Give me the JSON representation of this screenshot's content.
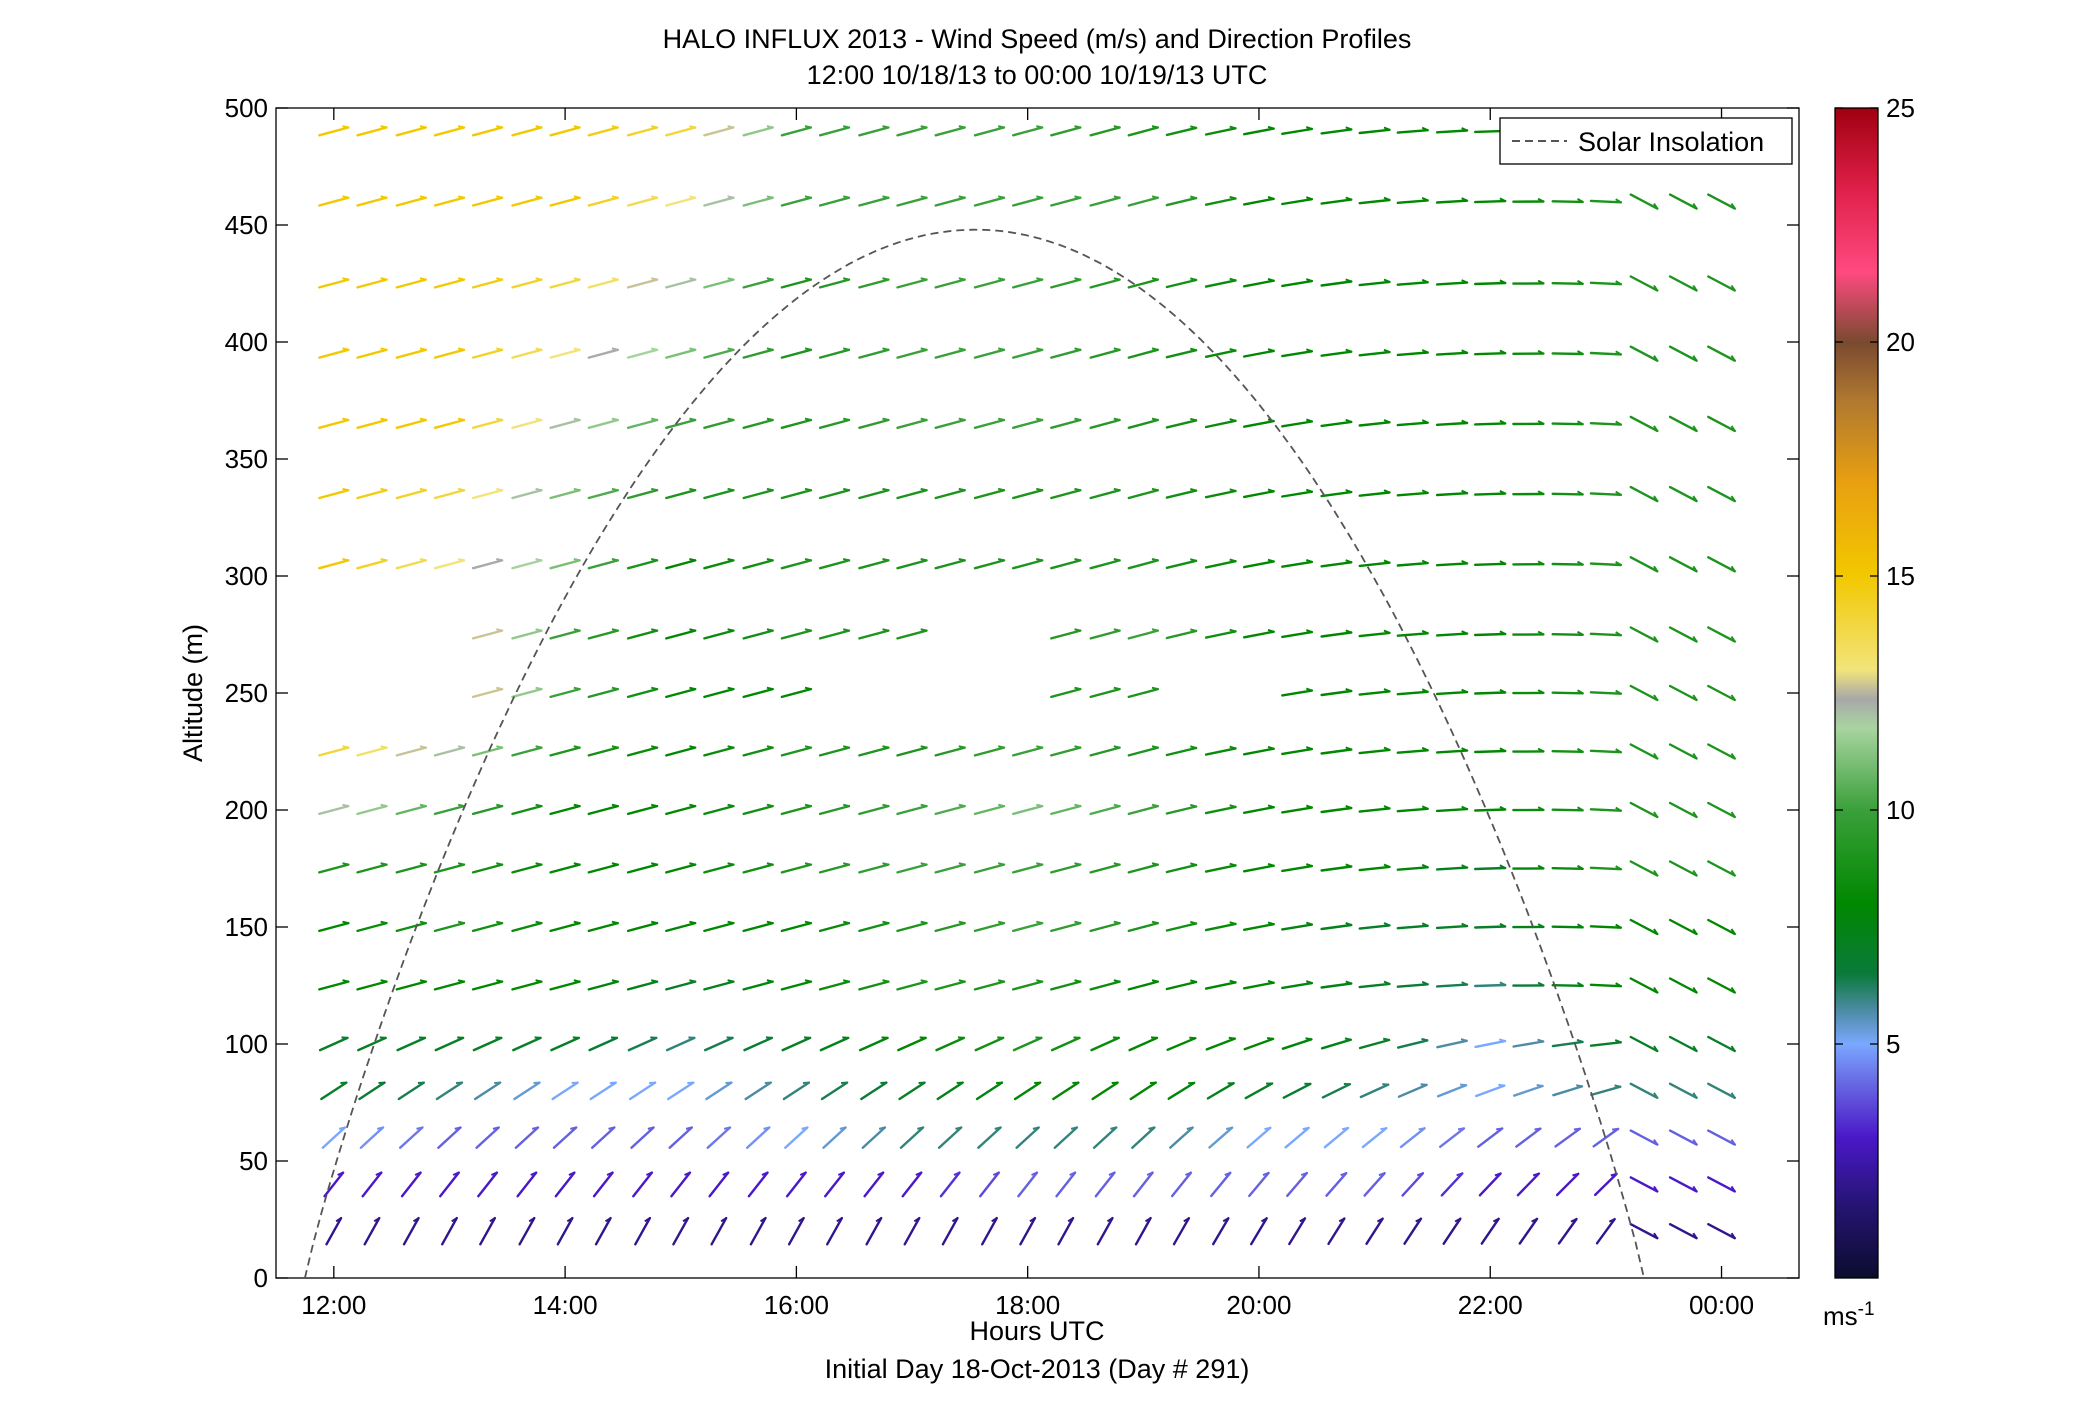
{
  "chart_data": {
    "type": "wind barb profile",
    "title": "HALO INFLUX 2013 - Wind Speed (m/s) and Direction Profiles",
    "subtitle": "12:00 10/18/13 to 00:00 10/19/13  UTC",
    "xlabel": "Hours UTC",
    "ylabel": "Altitude (m)",
    "footnote": "Initial Day 18-Oct-2013 (Day # 291)",
    "xlim_hours": [
      11.5,
      24.67
    ],
    "ylim": [
      0,
      500
    ],
    "x_ticks": [
      {
        "value": 12,
        "label": "12:00"
      },
      {
        "value": 14,
        "label": "14:00"
      },
      {
        "value": 16,
        "label": "16:00"
      },
      {
        "value": 18,
        "label": "18:00"
      },
      {
        "value": 20,
        "label": "20:00"
      },
      {
        "value": 22,
        "label": "22:00"
      },
      {
        "value": 24,
        "label": "00:00"
      }
    ],
    "y_ticks": [
      0,
      50,
      100,
      150,
      200,
      250,
      300,
      350,
      400,
      450,
      500
    ],
    "legend": {
      "label": "Solar Insolation",
      "placement": "top-right"
    },
    "colorbar": {
      "range": [
        0,
        25
      ],
      "ticks": [
        5,
        10,
        15,
        20,
        25
      ],
      "unit_label": "ms",
      "unit_exponent": "-1"
    },
    "solar_insolation_curve": {
      "style": "dashed",
      "color": "#555555",
      "start_hour": 11.75,
      "peak_hour": 17.55,
      "peak_altitude": 448,
      "end_hour": 23.33
    },
    "time_hours": [
      12.0,
      12.33,
      12.67,
      13.0,
      13.33,
      13.67,
      14.0,
      14.33,
      14.67,
      15.0,
      15.33,
      15.67,
      16.0,
      16.33,
      16.67,
      17.0,
      17.33,
      17.67,
      18.0,
      18.33,
      18.67,
      19.0,
      19.33,
      19.67,
      20.0,
      20.33,
      20.67,
      21.0,
      21.33,
      21.67,
      22.0,
      22.33,
      22.67,
      23.0,
      23.33,
      23.67,
      24.0
    ],
    "heights_m": [
      20,
      40,
      60,
      80,
      100,
      125,
      150,
      175,
      200,
      225,
      250,
      275,
      305,
      335,
      365,
      395,
      425,
      460,
      490
    ],
    "speed_profiles": [
      {
        "start_hour": 12.0,
        "speeds": [
          2,
          3,
          5,
          7,
          7,
          8,
          8,
          9,
          12,
          14,
          null,
          null,
          15,
          15,
          15,
          15,
          15,
          15,
          15
        ]
      },
      {
        "start_hour": 13.0,
        "speeds": [
          2,
          3,
          4,
          6,
          7,
          8,
          9,
          9,
          10,
          12,
          14,
          14,
          13,
          14,
          15,
          15,
          15,
          15,
          15
        ]
      },
      {
        "start_hour": 14.0,
        "speeds": [
          2,
          3,
          4,
          5,
          7,
          8,
          8,
          8,
          8,
          9,
          10,
          10,
          11,
          11,
          12,
          13,
          14,
          15,
          15
        ]
      },
      {
        "start_hour": 15.0,
        "speeds": [
          2,
          3,
          4,
          5,
          6,
          7,
          8,
          8,
          8,
          8,
          8,
          8,
          8,
          9,
          10,
          11,
          12,
          13,
          14
        ]
      },
      {
        "start_hour": 16.0,
        "speeds": [
          2,
          3,
          5,
          6,
          7,
          8,
          8,
          9,
          9,
          9,
          null,
          9,
          9,
          9,
          9,
          9,
          9,
          10,
          10
        ]
      },
      {
        "start_hour": 17.0,
        "speeds": [
          2,
          3,
          6,
          7,
          8,
          9,
          9,
          10,
          10,
          9,
          null,
          null,
          9,
          9,
          10,
          10,
          10,
          10,
          10
        ]
      },
      {
        "start_hour": 18.0,
        "speeds": [
          2,
          4,
          6,
          8,
          9,
          9,
          10,
          10,
          11,
          10,
          9,
          9,
          9,
          9,
          10,
          10,
          10,
          10,
          10
        ]
      },
      {
        "start_hour": 19.0,
        "speeds": [
          2,
          4,
          6,
          8,
          8,
          8,
          9,
          9,
          10,
          9,
          null,
          10,
          9,
          9,
          9,
          9,
          9,
          10,
          9
        ]
      },
      {
        "start_hour": 20.0,
        "speeds": [
          2,
          4,
          5,
          7,
          8,
          8,
          8,
          8,
          8,
          8,
          8,
          8,
          8,
          8,
          8,
          8,
          8,
          8,
          8
        ]
      },
      {
        "start_hour": 21.0,
        "speeds": [
          2,
          4,
          5,
          6,
          7,
          7,
          7,
          8,
          8,
          8,
          8,
          8,
          8,
          8,
          8,
          8,
          8,
          8,
          8
        ]
      },
      {
        "start_hour": 22.0,
        "speeds": [
          2,
          3,
          4,
          5,
          5,
          6,
          7,
          7,
          8,
          8,
          8,
          8,
          8,
          8,
          8,
          8,
          8,
          8,
          8
        ]
      },
      {
        "start_hour": 23.0,
        "speeds": [
          2,
          3,
          4,
          6,
          7,
          8,
          8,
          9,
          9,
          9,
          9,
          9,
          9,
          9,
          9,
          9,
          9,
          9,
          9
        ]
      }
    ]
  }
}
